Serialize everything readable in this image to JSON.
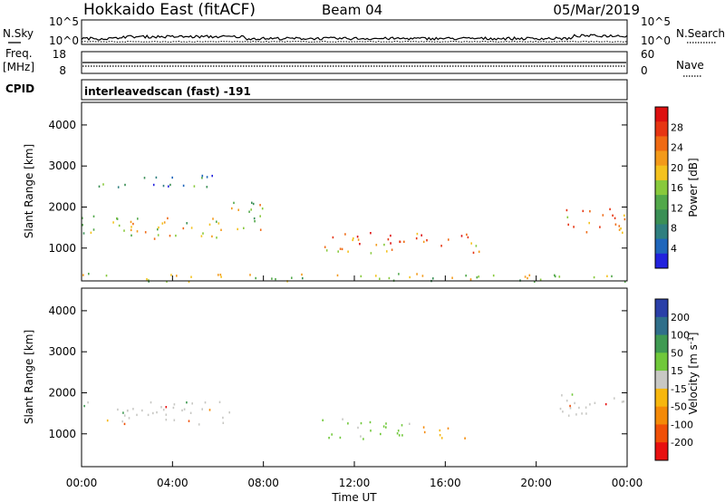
{
  "header": {
    "station": "Hokkaido East (fitACF)",
    "beam": "Beam 04",
    "date": "05/Mar/2019"
  },
  "strips": {
    "nsky_label": "N.Sky",
    "nsearch_label": "N.Search",
    "nsky_ticks": [
      "10^5",
      "10^0"
    ],
    "nsearch_ticks": [
      "10^5",
      "10^0"
    ],
    "freq_label": "Freq.",
    "freq_unit": "[MHz]",
    "freq_ticks": [
      "18",
      "8"
    ],
    "nave_label": "Nave",
    "nave_ticks": [
      "60",
      "0"
    ],
    "cpid_label": "CPID",
    "cpid_text": "interleavedscan (fast) -191"
  },
  "colors": {
    "power": [
      "#2222dd",
      "#1f66bb",
      "#2f7f7f",
      "#3a8f55",
      "#52a84a",
      "#88c93c",
      "#f4c21e",
      "#f39a1a",
      "#ef6a13",
      "#e63512",
      "#dd1010"
    ],
    "velocity": [
      "#e81010",
      "#f05008",
      "#f48a08",
      "#f7b70e",
      "#c8c8c4",
      "#70c83a",
      "#3f9a52",
      "#2f6f8a",
      "#2a3fa8"
    ]
  },
  "chart_data": [
    {
      "type": "heatmap",
      "name": "power",
      "ylabel": "Slant Range [km]",
      "xlabel": "",
      "ylim": [
        200,
        4550
      ],
      "yticks": [
        "1000",
        "2000",
        "3000",
        "4000"
      ],
      "colorbar": {
        "label": "Power [dB]",
        "ticks": [
          "4",
          "8",
          "12",
          "16",
          "20",
          "24",
          "28"
        ],
        "range": [
          0,
          30
        ]
      },
      "echo_regions": [
        {
          "t0": 0.0,
          "t1": 6.5,
          "r0": 1250,
          "r1": 1800,
          "value": "14-22 dB"
        },
        {
          "t0": 6.5,
          "t1": 8.0,
          "r0": 1300,
          "r1": 2200,
          "value": "16-24 dB"
        },
        {
          "t0": 10.5,
          "t1": 17.5,
          "r0": 900,
          "r1": 1400,
          "value": "18-26 dB"
        },
        {
          "t0": 21.0,
          "t1": 24.0,
          "r0": 1400,
          "r1": 2000,
          "value": "20-28 dB"
        },
        {
          "t0": 0.5,
          "t1": 6.0,
          "r0": 2500,
          "r1": 2800,
          "value": "8-14 dB"
        },
        {
          "t0": 0.0,
          "t1": 24.0,
          "r0": 200,
          "r1": 400,
          "value": "ground scatter"
        }
      ]
    },
    {
      "type": "heatmap",
      "name": "velocity",
      "ylabel": "Slant Range [km]",
      "xlabel": "Time UT",
      "ylim": [
        200,
        4550
      ],
      "yticks": [
        "1000",
        "2000",
        "3000",
        "4000"
      ],
      "xticks": [
        "00:00",
        "04:00",
        "08:00",
        "12:00",
        "16:00",
        "20:00",
        "00:00"
      ],
      "colorbar": {
        "label": "Velocity [m s",
        "label_sup": "-1",
        "label_end": "]",
        "ticks": [
          "200",
          "100",
          "50",
          "15",
          "-15",
          "-50",
          "-100",
          "-200"
        ],
        "range": [
          -250,
          250
        ]
      },
      "echo_regions": [
        {
          "t0": 0.0,
          "t1": 6.5,
          "r0": 1250,
          "r1": 1800,
          "value": "-15 to 15 m/s"
        },
        {
          "t0": 10.5,
          "t1": 14.5,
          "r0": 900,
          "r1": 1400,
          "value": "15 to 50 m/s"
        },
        {
          "t0": 15.0,
          "t1": 17.0,
          "r0": 900,
          "r1": 1200,
          "value": "-50 to -15 m/s"
        },
        {
          "t0": 21.0,
          "t1": 24.0,
          "r0": 1400,
          "r1": 2000,
          "value": "-15 to 15 m/s"
        }
      ]
    }
  ]
}
